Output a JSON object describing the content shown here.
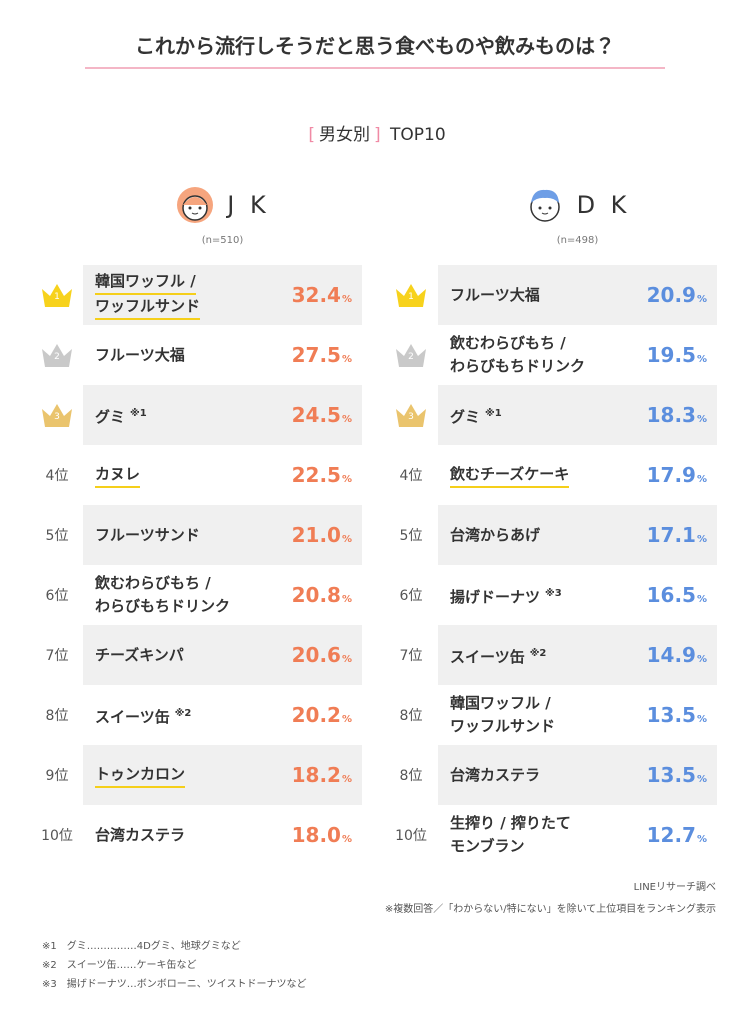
{
  "header": {
    "title": "これから流行しそうだと思う食べものや飲みものは？",
    "bracket_open": "[",
    "subtitle": "男女別",
    "bracket_close": "]",
    "subtitle_tail": "TOP10"
  },
  "unit": "%",
  "groups": [
    {
      "name": "J K",
      "sample": "(n=510)",
      "value_color": "#f07d55",
      "icon": "girl",
      "rows": [
        {
          "rank": "1",
          "crown": "#f7d21c",
          "name": [
            "韓国ワッフル /",
            "ワッフルサンド"
          ],
          "value": "32.4",
          "highlight": true
        },
        {
          "rank": "2",
          "crown": "#c9c9c9",
          "name": [
            "フルーツ大福"
          ],
          "value": "27.5"
        },
        {
          "rank": "3",
          "crown": "#eac46d",
          "name": [
            "グミ"
          ],
          "note": "※1",
          "value": "24.5"
        },
        {
          "rank": "4位",
          "name": [
            "カヌレ"
          ],
          "value": "22.5",
          "highlight": true
        },
        {
          "rank": "5位",
          "name": [
            "フルーツサンド"
          ],
          "value": "21.0"
        },
        {
          "rank": "6位",
          "name": [
            "飲むわらびもち /",
            "わらびもちドリンク"
          ],
          "value": "20.8"
        },
        {
          "rank": "7位",
          "name": [
            "チーズキンパ"
          ],
          "value": "20.6"
        },
        {
          "rank": "8位",
          "name": [
            "スイーツ缶"
          ],
          "note": "※2",
          "value": "20.2"
        },
        {
          "rank": "9位",
          "name": [
            "トゥンカロン"
          ],
          "value": "18.2",
          "highlight": true
        },
        {
          "rank": "10位",
          "name": [
            "台湾カステラ"
          ],
          "value": "18.0"
        }
      ]
    },
    {
      "name": "D K",
      "sample": "(n=498)",
      "value_color": "#5b8ede",
      "icon": "boy",
      "rows": [
        {
          "rank": "1",
          "crown": "#f7d21c",
          "name": [
            "フルーツ大福"
          ],
          "value": "20.9"
        },
        {
          "rank": "2",
          "crown": "#c9c9c9",
          "name": [
            "飲むわらびもち /",
            "わらびもちドリンク"
          ],
          "value": "19.5"
        },
        {
          "rank": "3",
          "crown": "#eac46d",
          "name": [
            "グミ"
          ],
          "note": "※1",
          "value": "18.3"
        },
        {
          "rank": "4位",
          "name": [
            "飲むチーズケーキ"
          ],
          "value": "17.9",
          "highlight": true
        },
        {
          "rank": "5位",
          "name": [
            "台湾からあげ"
          ],
          "value": "17.1"
        },
        {
          "rank": "6位",
          "name": [
            "揚げドーナツ"
          ],
          "note": "※3",
          "value": "16.5"
        },
        {
          "rank": "7位",
          "name": [
            "スイーツ缶"
          ],
          "note": "※2",
          "value": "14.9"
        },
        {
          "rank": "8位",
          "name": [
            "韓国ワッフル /",
            "ワッフルサンド"
          ],
          "value": "13.5"
        },
        {
          "rank": "8位",
          "name": [
            "台湾カステラ"
          ],
          "value": "13.5"
        },
        {
          "rank": "10位",
          "name": [
            "生搾り / 搾りたて",
            "モンブラン"
          ],
          "value": "12.7"
        }
      ]
    }
  ],
  "source": "LINEリサーチ調べ",
  "note": "※複数回答／「わからない/特にない」を除いて上位項目をランキング表示",
  "footnotes": [
    {
      "mark": "※1",
      "text": "グミ……………4Dグミ、地球グミなど"
    },
    {
      "mark": "※2",
      "text": "スイーツ缶……ケーキ缶など"
    },
    {
      "mark": "※3",
      "text": "揚げドーナツ…ボンボローニ、ツイストドーナツなど"
    }
  ]
}
